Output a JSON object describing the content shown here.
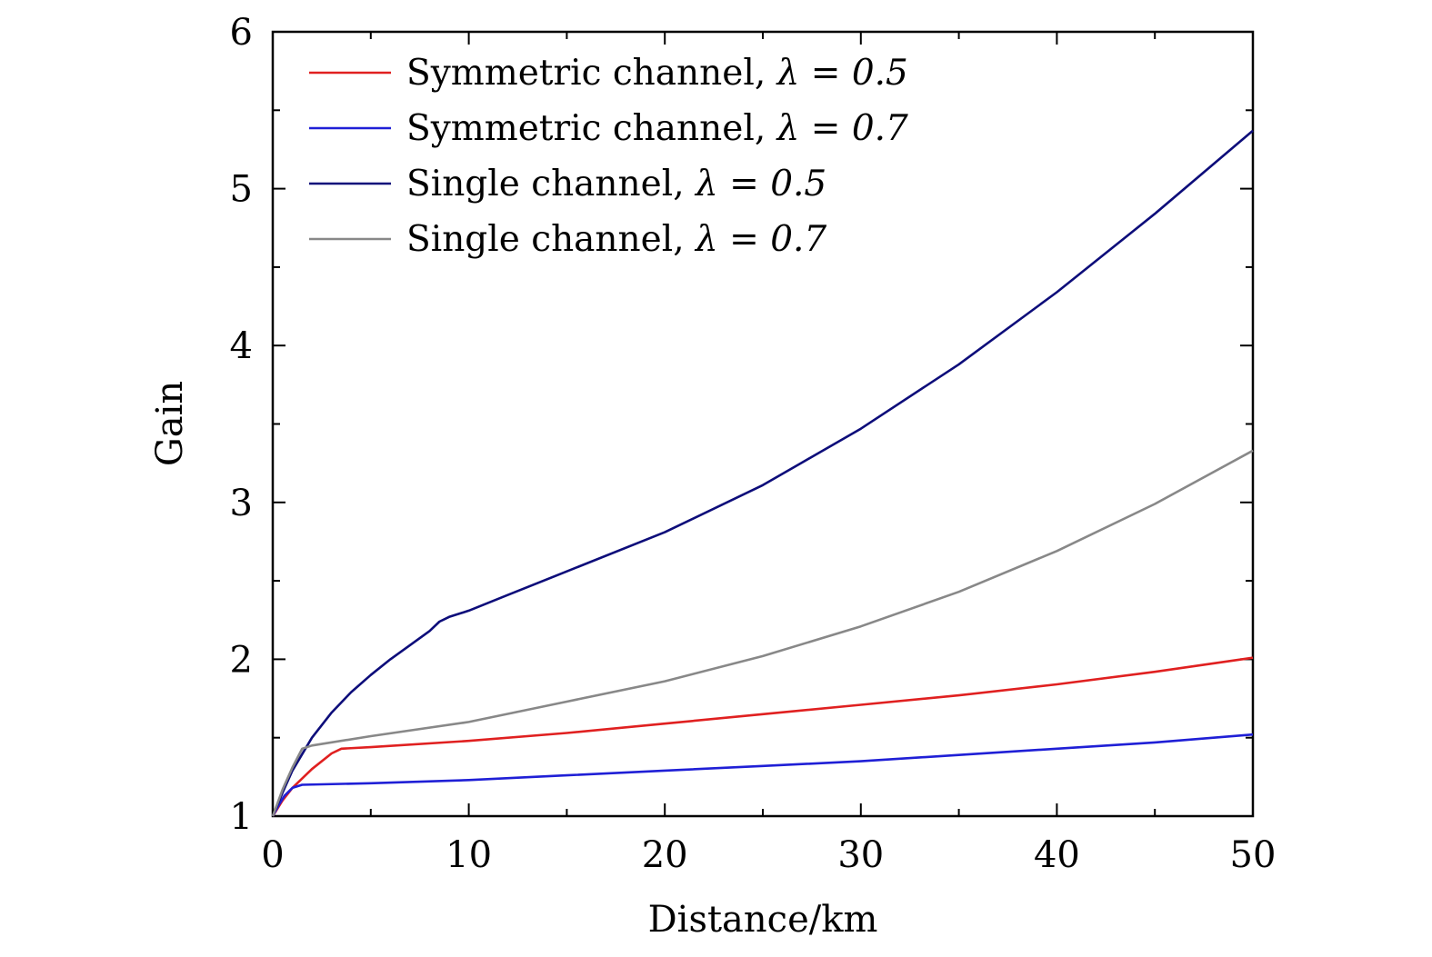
{
  "chart_data": {
    "type": "line",
    "xlabel": "Distance/km",
    "ylabel": "Gain",
    "xlim": [
      0,
      50
    ],
    "ylim": [
      1,
      6
    ],
    "xticks": [
      0,
      10,
      20,
      30,
      40,
      50
    ],
    "xtick_labels": [
      "0",
      "10",
      "20",
      "30",
      "40",
      "50"
    ],
    "yticks": [
      1,
      2,
      3,
      4,
      5,
      6
    ],
    "ytick_labels": [
      "1",
      "2",
      "3",
      "4",
      "5",
      "6"
    ],
    "grid": false,
    "legend_position": "top-left",
    "series": [
      {
        "name": "Symmetric channel,  λ = 0.5",
        "label_text": "Symmetric channel,",
        "lambda_text": "λ = 0.5",
        "color": "#e02020",
        "x": [
          0,
          0.5,
          1,
          2,
          3,
          3.5,
          5,
          10,
          15,
          20,
          25,
          30,
          35,
          40,
          45,
          50
        ],
        "y": [
          1.0,
          1.1,
          1.18,
          1.3,
          1.4,
          1.43,
          1.44,
          1.48,
          1.53,
          1.59,
          1.65,
          1.71,
          1.77,
          1.84,
          1.92,
          2.01
        ]
      },
      {
        "name": "Symmetric channel,  λ = 0.7",
        "label_text": "Symmetric channel,",
        "lambda_text": "λ = 0.7",
        "color": "#1f1fd6",
        "x": [
          0,
          0.3,
          0.6,
          1,
          1.5,
          5,
          10,
          15,
          20,
          25,
          30,
          35,
          40,
          45,
          50
        ],
        "y": [
          1.0,
          1.07,
          1.13,
          1.18,
          1.2,
          1.21,
          1.23,
          1.26,
          1.29,
          1.32,
          1.35,
          1.39,
          1.43,
          1.47,
          1.52
        ]
      },
      {
        "name": "Single channel,  λ = 0.5",
        "label_text": "Single channel,",
        "lambda_text": "λ = 0.5",
        "color": "#0d0d7a",
        "x": [
          0,
          0.5,
          1,
          2,
          3,
          4,
          5,
          6,
          7,
          8,
          8.5,
          9,
          10,
          12,
          15,
          20,
          25,
          30,
          35,
          40,
          45,
          50
        ],
        "y": [
          1.0,
          1.15,
          1.29,
          1.5,
          1.66,
          1.79,
          1.9,
          2.0,
          2.09,
          2.18,
          2.24,
          2.27,
          2.31,
          2.41,
          2.56,
          2.81,
          3.11,
          3.47,
          3.88,
          4.34,
          4.84,
          5.37
        ]
      },
      {
        "name": "Single channel,  λ = 0.7",
        "label_text": "Single channel,",
        "lambda_text": "λ = 0.7",
        "color": "#888888",
        "x": [
          0,
          0.5,
          1,
          1.5,
          2,
          5,
          10,
          15,
          20,
          25,
          30,
          35,
          40,
          45,
          50
        ],
        "y": [
          1.0,
          1.17,
          1.31,
          1.43,
          1.45,
          1.51,
          1.6,
          1.73,
          1.86,
          2.02,
          2.21,
          2.43,
          2.69,
          2.99,
          3.33
        ]
      }
    ]
  }
}
